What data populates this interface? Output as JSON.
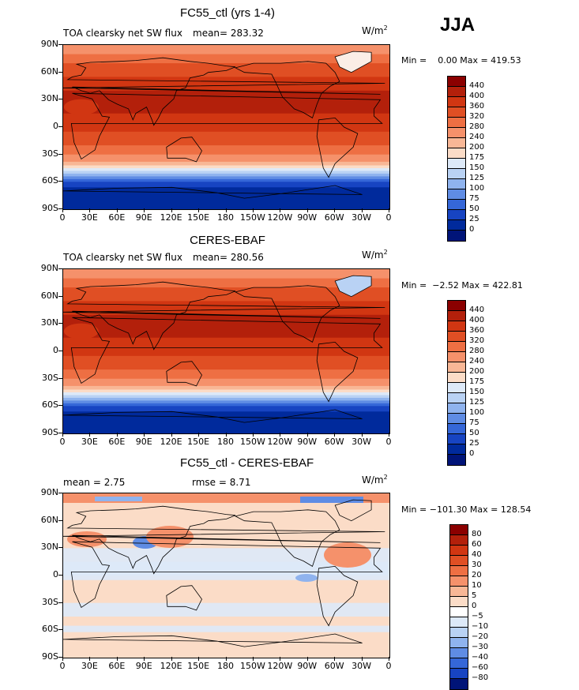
{
  "season": "JJA",
  "panels": [
    {
      "title": "FC55_ctl (yrs 1-4)",
      "left_text": "TOA clearsky net SW flux",
      "mean_text": "mean= 283.32",
      "units_main": "W/m",
      "units_sup": "2",
      "minmax": "Min =    0.00 Max = 419.53",
      "colorbar_labels": [
        "440",
        "400",
        "360",
        "320",
        "280",
        "240",
        "200",
        "175",
        "150",
        "125",
        "100",
        "75",
        "50",
        "25",
        "0"
      ],
      "colorbar_colors": [
        "#8b0000",
        "#b3200b",
        "#d13612",
        "#e04f24",
        "#ee6f43",
        "#f5916b",
        "#f8b796",
        "#fbdcc7",
        "#dde9f8",
        "#b9d2f4",
        "#8fb3ee",
        "#5f8ce4",
        "#3567d8",
        "#1744c2",
        "#002a9c",
        "#001478"
      ],
      "type": "abs",
      "frame": "1"
    },
    {
      "title": "CERES-EBAF",
      "left_text": "TOA clearsky net SW flux",
      "mean_text": "mean= 280.56",
      "units_main": "W/m",
      "units_sup": "2",
      "minmax": "Min =  −2.52 Max = 422.81",
      "colorbar_labels": [
        "440",
        "400",
        "360",
        "320",
        "280",
        "240",
        "200",
        "175",
        "150",
        "125",
        "100",
        "75",
        "50",
        "25",
        "0"
      ],
      "colorbar_colors": [
        "#8b0000",
        "#b3200b",
        "#d13612",
        "#e04f24",
        "#ee6f43",
        "#f5916b",
        "#f8b796",
        "#fbdcc7",
        "#dde9f8",
        "#b9d2f4",
        "#8fb3ee",
        "#5f8ce4",
        "#3567d8",
        "#1744c2",
        "#002a9c",
        "#001478"
      ],
      "type": "abs",
      "frame": "2"
    },
    {
      "title": "FC55_ctl - CERES-EBAF",
      "left_text": "mean =     2.75",
      "mean_text": "rmse =     8.71",
      "units_main": "W/m",
      "units_sup": "2",
      "minmax": "Min = −101.30 Max = 128.54",
      "colorbar_labels": [
        "80",
        "60",
        "40",
        "30",
        "20",
        "10",
        "5",
        "0",
        "−5",
        "−10",
        "−20",
        "−30",
        "−40",
        "−60",
        "−80"
      ],
      "colorbar_colors": [
        "#8b0000",
        "#b3200b",
        "#d13612",
        "#e04f24",
        "#ee6f43",
        "#f5916b",
        "#f8b796",
        "#fbdcc7",
        "#ffffff",
        "#dde9f8",
        "#b9d2f4",
        "#8fb3ee",
        "#5f8ce4",
        "#3567d8",
        "#1744c2",
        "#001478"
      ],
      "type": "diff",
      "frame": "3"
    }
  ],
  "lat_labels": [
    "90N",
    "60N",
    "30N",
    "0",
    "30S",
    "60S",
    "90S"
  ],
  "lon_labels": [
    "0",
    "30E",
    "60E",
    "90E",
    "120E",
    "150E",
    "180",
    "150W",
    "120W",
    "90W",
    "60W",
    "30W",
    "0"
  ]
}
